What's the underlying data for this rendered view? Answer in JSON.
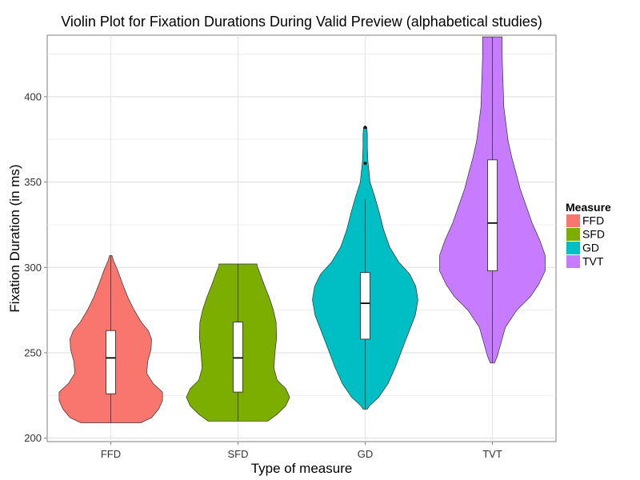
{
  "chart_data": {
    "type": "violin",
    "title": "Violin Plot for Fixation Durations During Valid Preview (alphabetical studies)",
    "xlabel": "Type of measure",
    "ylabel": "Fixation Duration (in ms)",
    "categories": [
      "FFD",
      "SFD",
      "GD",
      "TVT"
    ],
    "ylim": [
      198,
      436
    ],
    "yticks": [
      200,
      250,
      300,
      350,
      400
    ],
    "grid": true,
    "legend": {
      "title": "Measure",
      "position": "right",
      "entries": [
        "FFD",
        "SFD",
        "GD",
        "TVT"
      ]
    },
    "colors": {
      "FFD": "#F8766D",
      "SFD": "#7CAE00",
      "GD": "#00BFC4",
      "TVT": "#C77CFF"
    },
    "series": [
      {
        "name": "FFD",
        "min": 209,
        "max": 307,
        "box": {
          "q1": 226,
          "median": 247,
          "q3": 263
        },
        "whiskers": [
          209,
          307
        ],
        "outliers": [],
        "density": [
          [
            209,
            0.55
          ],
          [
            212,
            0.75
          ],
          [
            217,
            0.88
          ],
          [
            222,
            0.95
          ],
          [
            227,
            0.95
          ],
          [
            232,
            0.78
          ],
          [
            238,
            0.66
          ],
          [
            245,
            0.68
          ],
          [
            252,
            0.74
          ],
          [
            258,
            0.75
          ],
          [
            263,
            0.69
          ],
          [
            268,
            0.56
          ],
          [
            275,
            0.43
          ],
          [
            282,
            0.32
          ],
          [
            290,
            0.22
          ],
          [
            298,
            0.13
          ],
          [
            304,
            0.05
          ],
          [
            307,
            0.02
          ]
        ]
      },
      {
        "name": "SFD",
        "min": 210,
        "max": 302,
        "box": {
          "q1": 227,
          "median": 247,
          "q3": 268
        },
        "whiskers": [
          210,
          302
        ],
        "outliers": [],
        "density": [
          [
            210,
            0.55
          ],
          [
            214,
            0.72
          ],
          [
            219,
            0.88
          ],
          [
            224,
            0.95
          ],
          [
            229,
            0.88
          ],
          [
            234,
            0.72
          ],
          [
            241,
            0.66
          ],
          [
            250,
            0.68
          ],
          [
            259,
            0.71
          ],
          [
            268,
            0.7
          ],
          [
            275,
            0.65
          ],
          [
            282,
            0.58
          ],
          [
            290,
            0.48
          ],
          [
            297,
            0.4
          ],
          [
            301,
            0.35
          ],
          [
            302,
            0.35
          ]
        ]
      },
      {
        "name": "GD",
        "min": 217,
        "max": 382,
        "box": {
          "q1": 258,
          "median": 279,
          "q3": 297
        },
        "whiskers": [
          217,
          340
        ],
        "outliers": [
          361,
          382
        ],
        "density": [
          [
            217,
            0.04
          ],
          [
            219,
            0.08
          ],
          [
            224,
            0.25
          ],
          [
            232,
            0.42
          ],
          [
            242,
            0.56
          ],
          [
            252,
            0.68
          ],
          [
            262,
            0.8
          ],
          [
            272,
            0.92
          ],
          [
            281,
            0.97
          ],
          [
            289,
            0.93
          ],
          [
            296,
            0.82
          ],
          [
            303,
            0.62
          ],
          [
            312,
            0.45
          ],
          [
            322,
            0.34
          ],
          [
            332,
            0.26
          ],
          [
            342,
            0.17
          ],
          [
            350,
            0.09
          ],
          [
            356,
            0.07
          ],
          [
            362,
            0.05
          ],
          [
            370,
            0.04
          ],
          [
            378,
            0.04
          ],
          [
            382,
            0.03
          ]
        ]
      },
      {
        "name": "TVT",
        "min": 244,
        "max": 435,
        "box": {
          "q1": 298,
          "median": 326,
          "q3": 363
        },
        "whiskers": [
          244,
          435
        ],
        "outliers": [],
        "density": [
          [
            244,
            0.04
          ],
          [
            248,
            0.09
          ],
          [
            256,
            0.16
          ],
          [
            265,
            0.24
          ],
          [
            275,
            0.45
          ],
          [
            283,
            0.7
          ],
          [
            290,
            0.85
          ],
          [
            298,
            0.97
          ],
          [
            307,
            0.97
          ],
          [
            316,
            0.87
          ],
          [
            326,
            0.73
          ],
          [
            336,
            0.62
          ],
          [
            346,
            0.51
          ],
          [
            356,
            0.43
          ],
          [
            364,
            0.36
          ],
          [
            374,
            0.29
          ],
          [
            384,
            0.25
          ],
          [
            394,
            0.21
          ],
          [
            404,
            0.2
          ],
          [
            414,
            0.19
          ],
          [
            424,
            0.18
          ],
          [
            430,
            0.18
          ],
          [
            435,
            0.18
          ]
        ]
      }
    ]
  }
}
